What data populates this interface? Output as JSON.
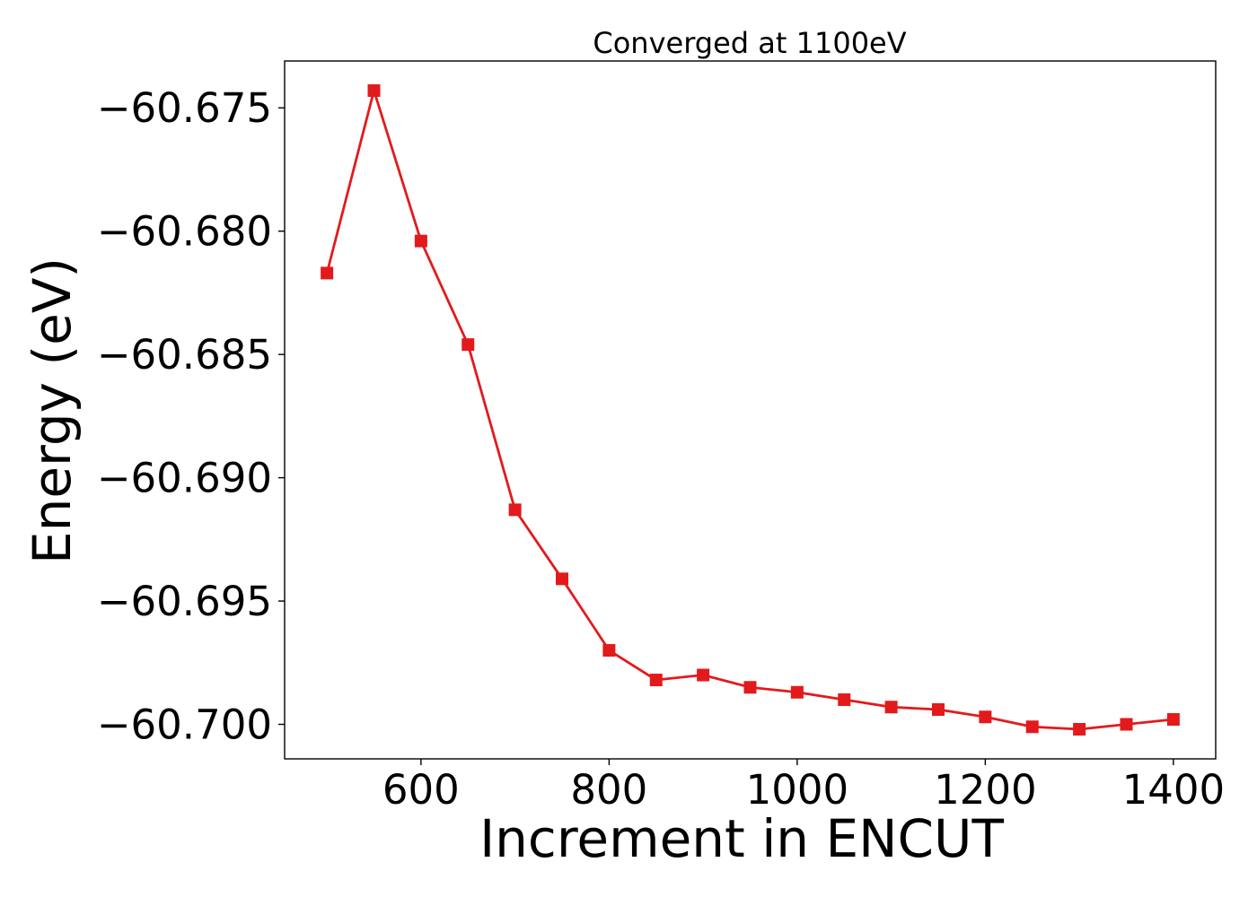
{
  "chart_data": {
    "type": "line",
    "title": "Converged at 1100eV",
    "xlabel": "Increment in ENCUT",
    "ylabel": "Energy (eV)",
    "x": [
      500,
      550,
      600,
      650,
      700,
      750,
      800,
      850,
      900,
      950,
      1000,
      1050,
      1100,
      1150,
      1200,
      1250,
      1300,
      1350,
      1400
    ],
    "series": [
      {
        "name": "",
        "values": [
          -60.6817,
          -60.6743,
          -60.6804,
          -60.6846,
          -60.6913,
          -60.6941,
          -60.697,
          -60.6982,
          -60.698,
          -60.6985,
          -60.6987,
          -60.699,
          -60.6993,
          -60.6994,
          -60.6997,
          -60.7001,
          -60.7002,
          -60.7,
          -60.6998
        ],
        "color": "#e31a1c",
        "marker": "square"
      }
    ],
    "xlim": [
      455,
      1445
    ],
    "ylim": [
      -60.7014,
      -60.6731
    ],
    "xticks": [
      600,
      800,
      1000,
      1200,
      1400
    ],
    "xtick_labels": [
      "600",
      "800",
      "1000",
      "1200",
      "1400"
    ],
    "yticks": [
      -60.675,
      -60.68,
      -60.685,
      -60.69,
      -60.695,
      -60.7
    ],
    "ytick_labels": [
      "−60.675",
      "−60.680",
      "−60.685",
      "−60.690",
      "−60.695",
      "−60.700"
    ],
    "grid": false,
    "legend": "none"
  }
}
